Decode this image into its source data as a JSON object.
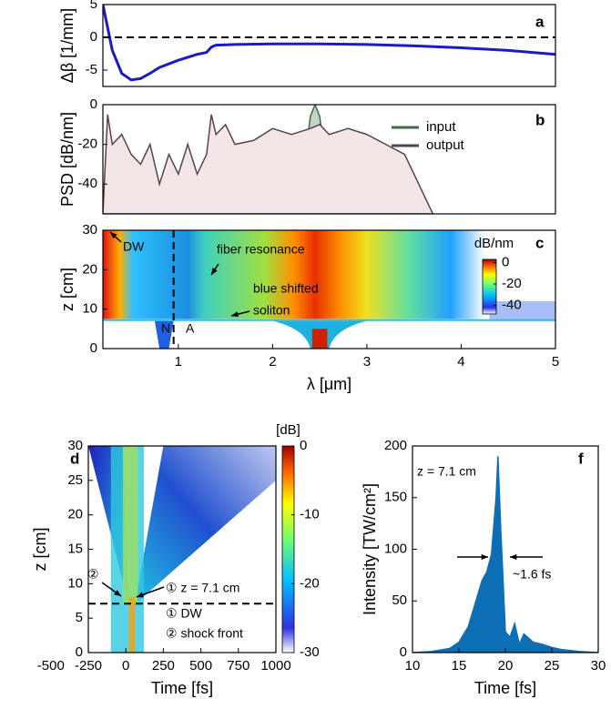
{
  "chart_data": [
    {
      "type": "line",
      "panel_label": "a",
      "ylabel": "Δβ [1/mm]",
      "xlim": [
        0.2,
        5
      ],
      "ylim": [
        -7.5,
        5
      ],
      "yticks": [
        -5,
        0,
        5
      ],
      "hline": 0,
      "series": [
        {
          "color": "#1a1ac8",
          "x": [
            0.2,
            0.3,
            0.4,
            0.5,
            0.6,
            0.7,
            0.8,
            1.0,
            1.2,
            1.3,
            1.35,
            1.4,
            1.6,
            2.0,
            2.5,
            3.0,
            3.5,
            4.0,
            4.5,
            5.0
          ],
          "values": [
            5,
            -2,
            -5.5,
            -6.5,
            -6.3,
            -5.5,
            -4.6,
            -3.5,
            -2.6,
            -2.3,
            -1.5,
            -1.2,
            -1.1,
            -1.0,
            -1.0,
            -1.1,
            -1.3,
            -1.6,
            -2.0,
            -2.6
          ]
        }
      ]
    },
    {
      "type": "area",
      "panel_label": "b",
      "ylabel": "PSD [dB/nm]",
      "xlim": [
        0.2,
        5
      ],
      "ylim": [
        -55,
        0
      ],
      "yticks": [
        0,
        -20,
        -40
      ],
      "series": [
        {
          "name": "input",
          "color": "#3d6b50",
          "fill": "#c5d3c5",
          "x": [
            2.3,
            2.35,
            2.4,
            2.45,
            2.5,
            2.55,
            2.6
          ],
          "values": [
            -55,
            -25,
            -6,
            0,
            -6,
            -25,
            -55
          ]
        },
        {
          "name": "output",
          "color": "#5a4050",
          "fill": "#f3e6e6",
          "x": [
            0.2,
            0.25,
            0.3,
            0.4,
            0.5,
            0.6,
            0.7,
            0.8,
            0.9,
            1.0,
            1.1,
            1.2,
            1.3,
            1.35,
            1.4,
            1.5,
            1.6,
            1.8,
            2.0,
            2.2,
            2.4,
            2.5,
            2.6,
            2.8,
            3.0,
            3.2,
            3.4,
            3.5,
            3.6,
            3.7
          ],
          "values": [
            -55,
            -5,
            -20,
            -15,
            -25,
            -30,
            -20,
            -40,
            -25,
            -35,
            -20,
            -35,
            -25,
            -5,
            -15,
            -10,
            -20,
            -18,
            -12,
            -15,
            -12,
            -10,
            -15,
            -12,
            -15,
            -20,
            -25,
            -35,
            -45,
            -55
          ]
        }
      ]
    },
    {
      "type": "heatmap",
      "panel_label": "c",
      "xlabel": "λ [μm]",
      "ylabel": "z [cm]",
      "xlim": [
        0.2,
        5
      ],
      "xticks": [
        1,
        2,
        3,
        4,
        5
      ],
      "ylim": [
        0,
        30
      ],
      "yticks": [
        0,
        10,
        20,
        30
      ],
      "vline": 0.95,
      "colorbar": {
        "label": "dB/nm",
        "lim": [
          -48,
          3
        ],
        "ticks": [
          0,
          -20,
          -40
        ]
      },
      "annotations": [
        "DW",
        "fiber resonance",
        "blue shifted",
        "soliton",
        "N",
        "A"
      ]
    },
    {
      "type": "heatmap",
      "panel_label": "d",
      "xlabel": "Time [fs]",
      "ylabel": "z [cm]",
      "xlim": [
        -250,
        1000
      ],
      "xticks": [
        -500,
        -250,
        0,
        250,
        500,
        750,
        1000
      ],
      "ylim": [
        0,
        30
      ],
      "yticks": [
        0,
        5,
        10,
        15,
        20,
        25,
        30
      ],
      "hline": 7.1,
      "colorbar": {
        "label": "[dB]",
        "lim": [
          -30,
          0
        ],
        "ticks": [
          0,
          -10,
          -20,
          -30
        ]
      },
      "annotations": [
        "②",
        "① z = 7.1 cm",
        "① DW",
        "② shock front"
      ]
    },
    {
      "type": "area",
      "panel_label": "f",
      "xlabel": "Time [fs]",
      "ylabel": "Intensity [TW/cm²]",
      "xlim": [
        10,
        30
      ],
      "xticks": [
        10,
        15,
        20,
        25,
        30
      ],
      "ylim": [
        0,
        200
      ],
      "yticks": [
        0,
        50,
        100,
        150,
        200
      ],
      "series": [
        {
          "color": "#0c6fb5",
          "fill": "#0c6fb5",
          "x": [
            10,
            12,
            14,
            15,
            16,
            17,
            17.5,
            18,
            18.5,
            19,
            19.2,
            19.5,
            20,
            20.5,
            21,
            21.5,
            22,
            23,
            24,
            25,
            26,
            28,
            30
          ],
          "values": [
            0,
            1,
            4,
            10,
            25,
            55,
            70,
            78,
            95,
            150,
            190,
            120,
            20,
            15,
            28,
            8,
            18,
            10,
            8,
            5,
            3,
            1,
            0
          ]
        }
      ],
      "annotations": [
        "z = 7.1 cm",
        "~1.6 fs"
      ]
    }
  ]
}
